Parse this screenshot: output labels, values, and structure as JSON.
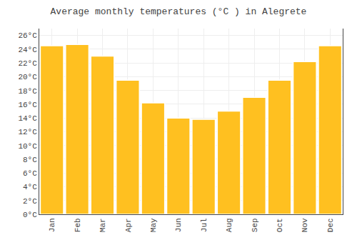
{
  "chart_data": {
    "type": "bar",
    "title": "Average monthly temperatures (°C ) in Alegrete",
    "categories": [
      "Jan",
      "Feb",
      "Mar",
      "Apr",
      "May",
      "Jun",
      "Jul",
      "Aug",
      "Sep",
      "Oct",
      "Nov",
      "Dec"
    ],
    "values": [
      24.5,
      24.7,
      23.0,
      19.5,
      16.2,
      14.0,
      13.8,
      15.0,
      17.0,
      19.5,
      22.2,
      24.5
    ],
    "color": "#FFC020",
    "ylim": [
      0,
      27
    ],
    "yticks": [
      {
        "value": 0,
        "label": "0°C"
      },
      {
        "value": 2,
        "label": "2°C"
      },
      {
        "value": 4,
        "label": "4°C"
      },
      {
        "value": 6,
        "label": "6°C"
      },
      {
        "value": 8,
        "label": "8°C"
      },
      {
        "value": 10,
        "label": "10°C"
      },
      {
        "value": 12,
        "label": "12°C"
      },
      {
        "value": 14,
        "label": "14°C"
      },
      {
        "value": 16,
        "label": "16°C"
      },
      {
        "value": 18,
        "label": "18°C"
      },
      {
        "value": 20,
        "label": "20°C"
      },
      {
        "value": 22,
        "label": "22°C"
      },
      {
        "value": 24,
        "label": "24°C"
      },
      {
        "value": 26,
        "label": "26°C"
      }
    ],
    "grid": true
  }
}
